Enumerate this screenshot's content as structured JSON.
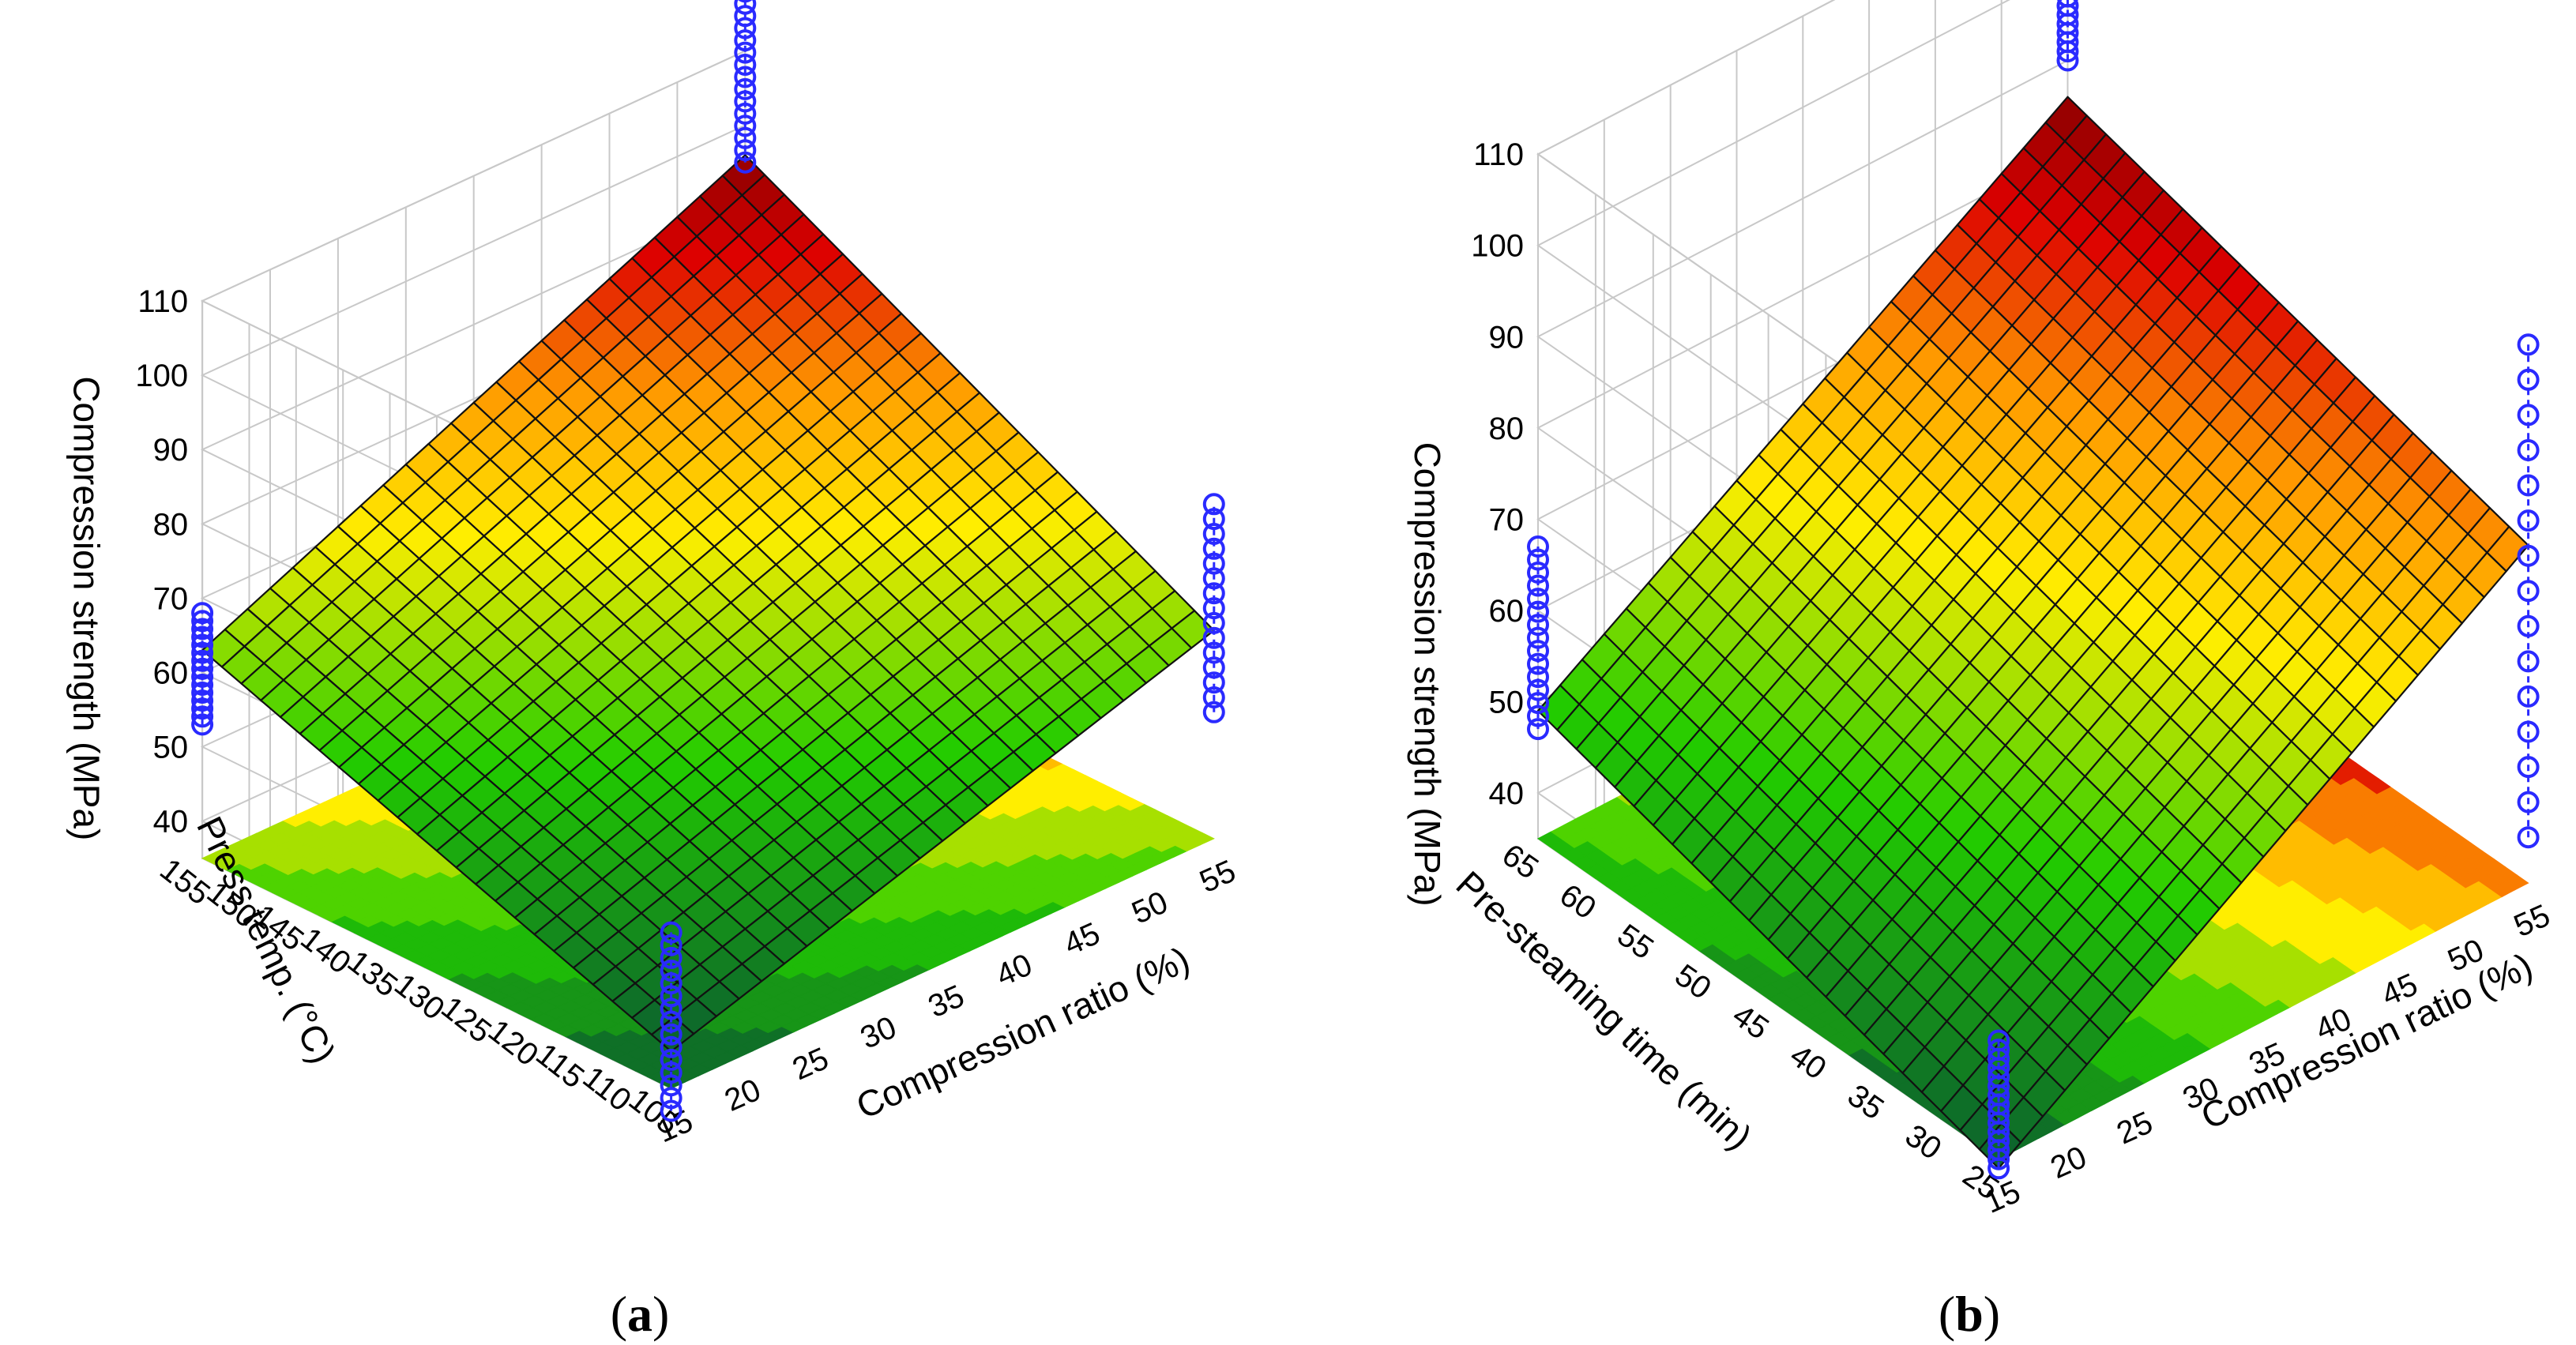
{
  "chart_data": [
    {
      "panel": "a",
      "type": "surface3d",
      "zlabel": "Compression strength (MPa)",
      "xlabel": "Compression ratio (%)",
      "ylabel": "Press temp. (°C)",
      "x_ticks": [
        "15",
        "20",
        "25",
        "30",
        "35",
        "40",
        "45",
        "50",
        "55"
      ],
      "y_ticks": [
        "105",
        "110",
        "115",
        "120",
        "125",
        "130",
        "135",
        "140",
        "145",
        "150",
        "155"
      ],
      "z_ticks": [
        "40",
        "50",
        "60",
        "70",
        "80",
        "90",
        "100",
        "110"
      ],
      "xlim": [
        15,
        55
      ],
      "ylim": [
        105,
        155
      ],
      "zlim": [
        35,
        110
      ],
      "surface_corners": [
        {
          "x": 15,
          "y": 105,
          "z": 40
        },
        {
          "x": 55,
          "y": 105,
          "z": 63
        },
        {
          "x": 15,
          "y": 155,
          "z": 63
        },
        {
          "x": 55,
          "y": 155,
          "z": 96
        }
      ],
      "observations": [
        {
          "x": 15,
          "y": 105,
          "z_min": 32,
          "z_max": 56
        },
        {
          "x": 55,
          "y": 105,
          "z_min": 52,
          "z_max": 80
        },
        {
          "x": 15,
          "y": 155,
          "z_min": 53,
          "z_max": 68
        },
        {
          "x": 55,
          "y": 155,
          "z_min": 95,
          "z_max": 118
        }
      ]
    },
    {
      "panel": "b",
      "type": "surface3d",
      "zlabel": "Compression strength (MPa)",
      "xlabel": "Compression ratio (%)",
      "ylabel": "Pre-steaming time (min)",
      "x_ticks": [
        "15",
        "20",
        "25",
        "30",
        "35",
        "40",
        "45",
        "50",
        "55"
      ],
      "y_ticks": [
        "25",
        "30",
        "35",
        "40",
        "45",
        "50",
        "55",
        "60",
        "65"
      ],
      "z_ticks": [
        "40",
        "50",
        "60",
        "70",
        "80",
        "90",
        "100",
        "110"
      ],
      "xlim": [
        15,
        55
      ],
      "ylim": [
        25,
        65
      ],
      "zlim": [
        35,
        110
      ],
      "surface_corners": [
        {
          "x": 15,
          "y": 25,
          "z": 34
        },
        {
          "x": 55,
          "y": 25,
          "z": 72
        },
        {
          "x": 15,
          "y": 65,
          "z": 49
        },
        {
          "x": 55,
          "y": 65,
          "z": 86
        }
      ],
      "observations": [
        {
          "x": 15,
          "y": 25,
          "z_min": 34,
          "z_max": 48
        },
        {
          "x": 55,
          "y": 25,
          "z_min": 40,
          "z_max": 94
        },
        {
          "x": 15,
          "y": 65,
          "z_min": 47,
          "z_max": 67
        },
        {
          "x": 55,
          "y": 65,
          "z_min": 90,
          "z_max": 104
        }
      ]
    }
  ],
  "panel_labels": {
    "a": {
      "open": "(",
      "letter": "a",
      "close": ")"
    },
    "b": {
      "open": "(",
      "letter": "b",
      "close": ")"
    }
  },
  "colors": {
    "grid": "#c8c8c8",
    "mesh": "#111111",
    "points": "#2a2aff",
    "low": "#0b5e2f",
    "mid_green": "#22cc00",
    "yellow": "#ffee00",
    "orange": "#ff9900",
    "red": "#dd0000",
    "high": "#8b0000"
  }
}
